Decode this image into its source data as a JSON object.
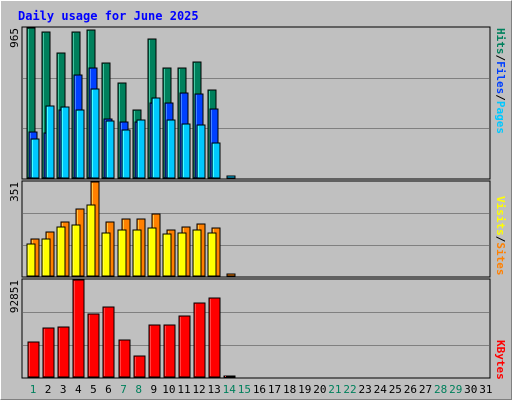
{
  "chart_data": {
    "type": "bar",
    "title": "Daily usage for June 2025",
    "days": [
      "1",
      "2",
      "3",
      "4",
      "5",
      "6",
      "7",
      "8",
      "9",
      "10",
      "11",
      "12",
      "13",
      "14",
      "15",
      "16",
      "17",
      "18",
      "19",
      "20",
      "21",
      "22",
      "23",
      "24",
      "25",
      "26",
      "27",
      "28",
      "29",
      "30",
      "31"
    ],
    "weekend_days": [
      "1",
      "7",
      "8",
      "14",
      "15",
      "21",
      "22",
      "28",
      "29"
    ],
    "hits_panel": {
      "max_label": "965",
      "ylim": [
        0,
        965
      ],
      "legend": [
        "Pages",
        "Files",
        "Hits"
      ],
      "separator": "/",
      "series": [
        {
          "name": "Hits",
          "values": [
            965,
            940,
            805,
            940,
            955,
            740,
            610,
            435,
            895,
            710,
            710,
            745,
            565,
            0
          ]
        },
        {
          "name": "Files",
          "values": [
            295,
            290,
            440,
            665,
            710,
            380,
            360,
            360,
            480,
            480,
            545,
            540,
            445,
            0
          ]
        },
        {
          "name": "Pages",
          "values": [
            250,
            460,
            455,
            440,
            570,
            365,
            310,
            375,
            515,
            370,
            350,
            340,
            225,
            12
          ]
        }
      ]
    },
    "visits_panel": {
      "max_label": "351",
      "ylim": [
        0,
        351
      ],
      "legend": [
        "Sites",
        "Visits"
      ],
      "separator": "/",
      "series": [
        {
          "name": "Visits",
          "values": [
            140,
            165,
            200,
            250,
            351,
            200,
            212,
            214,
            232,
            172,
            182,
            196,
            180,
            6
          ]
        },
        {
          "name": "Sites",
          "values": [
            118,
            138,
            182,
            190,
            265,
            160,
            170,
            170,
            180,
            155,
            160,
            170,
            160,
            0
          ]
        }
      ]
    },
    "kbytes_panel": {
      "max_label": "92851",
      "ylim": [
        0,
        92851
      ],
      "legend": [
        "KBytes"
      ],
      "series": [
        {
          "name": "KBytes",
          "values": [
            33500,
            47000,
            48000,
            92851,
            60000,
            67000,
            35000,
            20000,
            50000,
            50000,
            58000,
            71000,
            76000,
            800
          ]
        }
      ]
    }
  },
  "colors": {
    "title": "#0000ff",
    "hits": "#00805c",
    "files": "#0040ff",
    "pages": "#00c8ff",
    "visits": "#ff8000",
    "sites": "#ffff00",
    "kbytes": "#ff0000",
    "weekend_label": "#00805c",
    "weekday_label": "#000000",
    "grid": "#808080"
  }
}
